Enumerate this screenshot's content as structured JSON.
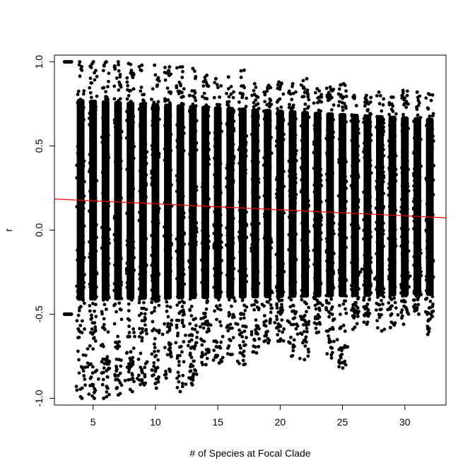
{
  "chart_data": {
    "type": "scatter",
    "title": "",
    "xlabel": "# of Species at Focal Clade",
    "ylabel": "r",
    "xlim": [
      1.9,
      33.3
    ],
    "ylim": [
      -1.04,
      1.04
    ],
    "x_ticks": [
      5,
      10,
      15,
      20,
      25,
      30
    ],
    "x_tick_labels": [
      "5",
      "10",
      "15",
      "20",
      "25",
      "30"
    ],
    "y_ticks": [
      -1.0,
      -0.5,
      0.0,
      0.5,
      1.0
    ],
    "y_tick_labels": [
      "-1.0",
      "-0.5",
      "0.0",
      "0.5",
      "1.0"
    ],
    "grid": false,
    "legend": "none",
    "point_color": "#000000",
    "trend_color": "#ff0000",
    "columns": [
      {
        "x": 3,
        "ymin": -0.5,
        "ymax": 1.0
      },
      {
        "x": 4,
        "ymin": -1.0,
        "ymax": 1.0
      },
      {
        "x": 5,
        "ymin": -1.0,
        "ymax": 1.0
      },
      {
        "x": 6,
        "ymin": -1.0,
        "ymax": 1.0
      },
      {
        "x": 7,
        "ymin": -0.98,
        "ymax": 1.0
      },
      {
        "x": 8,
        "ymin": -0.96,
        "ymax": 0.99
      },
      {
        "x": 9,
        "ymin": -0.92,
        "ymax": 0.98
      },
      {
        "x": 10,
        "ymin": -0.94,
        "ymax": 0.98
      },
      {
        "x": 11,
        "ymin": -0.88,
        "ymax": 0.97
      },
      {
        "x": 12,
        "ymin": -0.96,
        "ymax": 0.97
      },
      {
        "x": 13,
        "ymin": -0.92,
        "ymax": 0.96
      },
      {
        "x": 14,
        "ymin": -0.8,
        "ymax": 0.92
      },
      {
        "x": 15,
        "ymin": -0.79,
        "ymax": 0.9
      },
      {
        "x": 16,
        "ymin": -0.74,
        "ymax": 0.91
      },
      {
        "x": 17,
        "ymin": -0.8,
        "ymax": 0.95
      },
      {
        "x": 18,
        "ymin": -0.73,
        "ymax": 0.87
      },
      {
        "x": 19,
        "ymin": -0.67,
        "ymax": 0.86
      },
      {
        "x": 20,
        "ymin": -0.66,
        "ymax": 0.88
      },
      {
        "x": 21,
        "ymin": -0.75,
        "ymax": 0.87
      },
      {
        "x": 22,
        "ymin": -0.77,
        "ymax": 0.9
      },
      {
        "x": 23,
        "ymin": -0.61,
        "ymax": 0.84
      },
      {
        "x": 24,
        "ymin": -0.76,
        "ymax": 0.85
      },
      {
        "x": 25,
        "ymin": -0.82,
        "ymax": 0.87
      },
      {
        "x": 26,
        "ymin": -0.59,
        "ymax": 0.8
      },
      {
        "x": 27,
        "ymin": -0.56,
        "ymax": 0.8
      },
      {
        "x": 28,
        "ymin": -0.6,
        "ymax": 0.82
      },
      {
        "x": 29,
        "ymin": -0.58,
        "ymax": 0.79
      },
      {
        "x": 30,
        "ymin": -0.56,
        "ymax": 0.83
      },
      {
        "x": 31,
        "ymin": -0.5,
        "ymax": 0.82
      },
      {
        "x": 32,
        "ymin": -0.62,
        "ymax": 0.81
      }
    ],
    "trend_line": {
      "x": [
        1.9,
        33.3
      ],
      "y": [
        0.185,
        0.073
      ]
    }
  }
}
